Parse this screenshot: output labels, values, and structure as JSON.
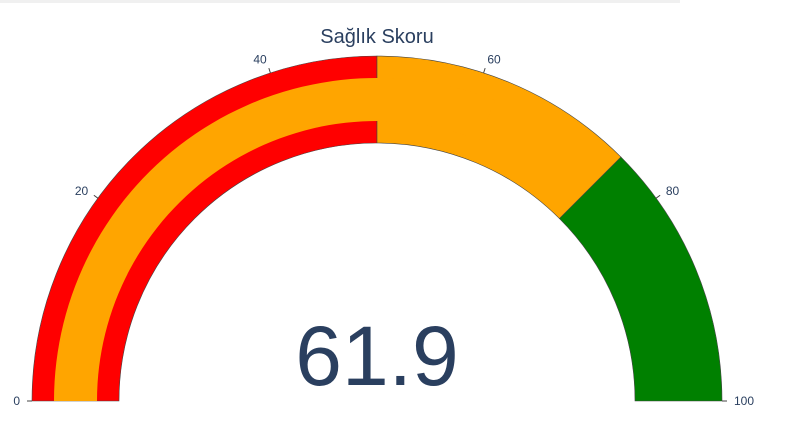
{
  "chart_data": {
    "type": "gauge",
    "title": "Sağlık Skoru",
    "value": 61.9,
    "value_label": "61.9",
    "range": [
      0,
      100
    ],
    "ticks": [
      {
        "value": 0,
        "label": "0"
      },
      {
        "value": 20,
        "label": "20"
      },
      {
        "value": 40,
        "label": "40"
      },
      {
        "value": 60,
        "label": "60"
      },
      {
        "value": 80,
        "label": "80"
      },
      {
        "value": 100,
        "label": "100"
      }
    ],
    "steps": [
      {
        "range": [
          0,
          50
        ],
        "color": "#ff0000"
      },
      {
        "range": [
          50,
          75
        ],
        "color": "#ffa500"
      },
      {
        "range": [
          75,
          100
        ],
        "color": "#008000"
      }
    ],
    "bar_color": "#ffa500",
    "text_color": "#2a3f5f"
  }
}
